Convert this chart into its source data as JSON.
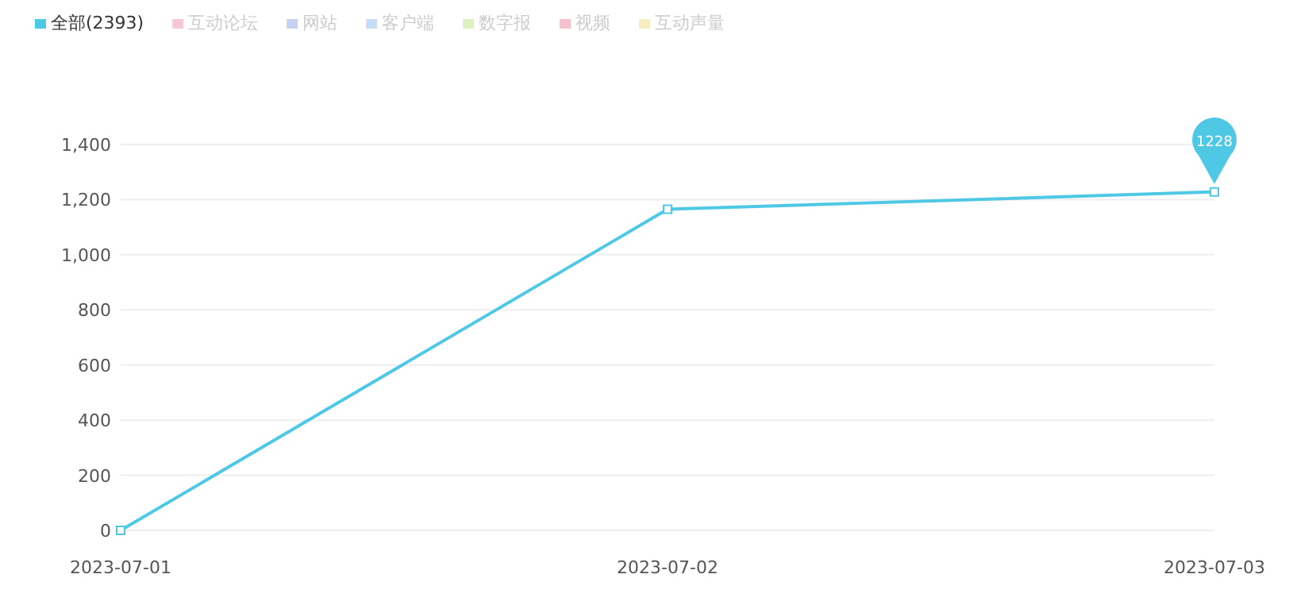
{
  "chart_data": {
    "type": "line",
    "categories": [
      "2023-07-01",
      "2023-07-02",
      "2023-07-03"
    ],
    "series": [
      {
        "name": "全部(2393)",
        "color": "#4fc8e6",
        "values": [
          0,
          1165,
          1228
        ],
        "value_labels": [
          null,
          null,
          "1228"
        ]
      },
      {
        "name": "互动论坛",
        "color": "#f8c8d4",
        "values": [
          null,
          null,
          null
        ]
      },
      {
        "name": "网站",
        "color": "#c8d0f0",
        "values": [
          null,
          null,
          null
        ]
      },
      {
        "name": "客户端",
        "color": "#c8dcf8",
        "values": [
          null,
          null,
          null
        ]
      },
      {
        "name": "数字报",
        "color": "#e0f0c0",
        "values": [
          null,
          null,
          null
        ]
      },
      {
        "name": "视频",
        "color": "#f8c0cc",
        "values": [
          null,
          null,
          null
        ]
      },
      {
        "name": "互动声量",
        "color": "#f8ecc0",
        "values": [
          null,
          null,
          null
        ]
      }
    ],
    "ylim": [
      0,
      1400
    ],
    "yticks": [
      {
        "value": 0,
        "label": "0"
      },
      {
        "value": 200,
        "label": "200"
      },
      {
        "value": 400,
        "label": "400"
      },
      {
        "value": 600,
        "label": "600"
      },
      {
        "value": 800,
        "label": "800"
      },
      {
        "value": 1000,
        "label": "1,000"
      },
      {
        "value": 1200,
        "label": "1,200"
      },
      {
        "value": 1400,
        "label": "1,400"
      }
    ],
    "grid": "y",
    "legend": "top left",
    "marker": "square",
    "line_style": "solid"
  }
}
